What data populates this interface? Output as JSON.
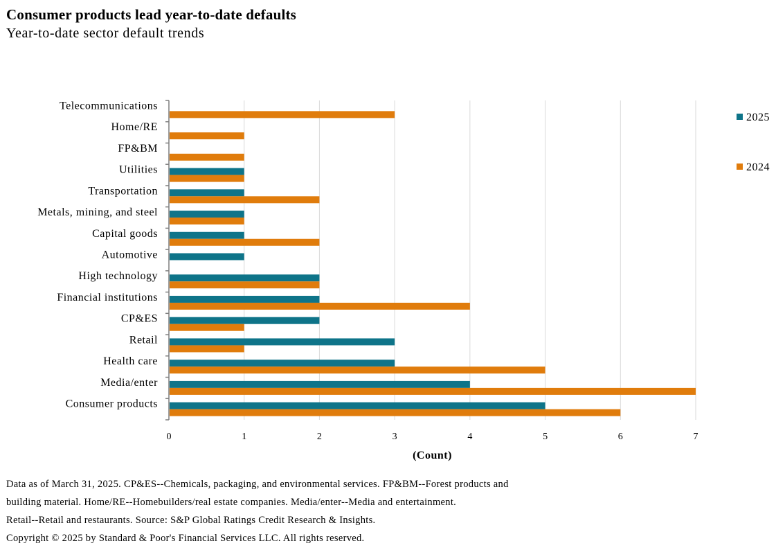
{
  "header": {
    "title": "Consumer products lead year-to-date defaults",
    "subtitle": "Year-to-date sector default trends"
  },
  "footnotes": [
    "Data as of March 31, 2025. CP&ES--Chemicals, packaging, and environmental services.  FP&BM--Forest products and",
    "building material. Home/RE--Homebuilders/real estate companies. Media/enter--Media and entertainment.",
    "Retail--Retail and restaurants. Source: S&P Global Ratings Credit Research & Insights.",
    "Copyright © 2025 by Standard & Poor's Financial Services LLC. All rights reserved."
  ],
  "colors": {
    "s2025": "#0e7489",
    "s2024": "#e07c0c",
    "grid": "#d9d9d9",
    "axis": "#7f7f7f"
  },
  "chart_data": {
    "type": "bar",
    "orientation": "horizontal",
    "categories": [
      "Telecommunications",
      "Home/RE",
      "FP&BM",
      "Utilities",
      "Transportation",
      "Metals, mining, and steel",
      "Capital goods",
      "Automotive",
      "High technology",
      "Financial institutions",
      "CP&ES",
      "Retail",
      "Health care",
      "Media/enter",
      "Consumer products"
    ],
    "series": [
      {
        "name": "2025",
        "color": "#0e7489",
        "values": [
          0,
          0,
          0,
          1,
          1,
          1,
          1,
          1,
          2,
          2,
          2,
          3,
          3,
          4,
          5
        ]
      },
      {
        "name": "2024",
        "color": "#e07c0c",
        "values": [
          3,
          1,
          1,
          1,
          2,
          1,
          2,
          0,
          2,
          4,
          1,
          1,
          5,
          7,
          6
        ]
      }
    ],
    "xlabel": "(Count)",
    "ylabel": "",
    "xlim": [
      0,
      7
    ],
    "xticks": [
      "0",
      "1",
      "2",
      "3",
      "4",
      "5",
      "6",
      "7"
    ],
    "grid": true,
    "legend_position": "right"
  }
}
